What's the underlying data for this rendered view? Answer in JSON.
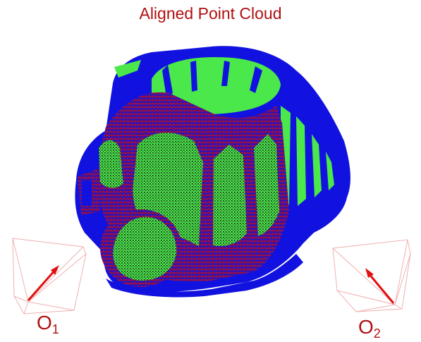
{
  "title": "Aligned Point Cloud",
  "observers": [
    {
      "letter": "O",
      "index": "1"
    },
    {
      "letter": "O",
      "index": "2"
    }
  ],
  "colors": {
    "title": "#b01010",
    "arrow": "#e01010",
    "frustum": "#f0b0b0",
    "cloud_blue": "#1010e6",
    "cloud_green": "#4ae84a",
    "cloud_red": "#d01010",
    "cloud_dark": "#202020"
  }
}
